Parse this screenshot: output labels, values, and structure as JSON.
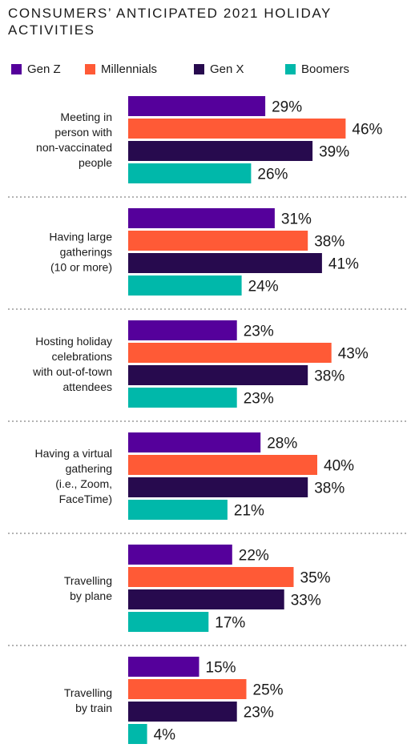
{
  "chart_data": {
    "type": "bar",
    "orientation": "horizontal",
    "title": "CONSUMERS’ ANTICIPATED 2021 HOLIDAY ACTIVITIES",
    "legend_placement": "top",
    "grid": false,
    "xlim": [
      0,
      50
    ],
    "value_suffix": "%",
    "categories": [
      [
        "Meeting in",
        "person with",
        "non-vaccinated",
        "people"
      ],
      [
        "Having large",
        "gatherings",
        "(10 or more)"
      ],
      [
        "Hosting holiday",
        "celebrations",
        "with out-of-town",
        "attendees"
      ],
      [
        "Having a virtual",
        "gathering",
        "(i.e., Zoom,",
        "FaceTime)"
      ],
      [
        "Travelling",
        "by plane"
      ],
      [
        "Travelling",
        "by train"
      ]
    ],
    "series": [
      {
        "name": "Gen Z",
        "color": "#55009b",
        "values": [
          29,
          31,
          23,
          28,
          22,
          15
        ]
      },
      {
        "name": "Millennials",
        "color": "#ff5a36",
        "values": [
          46,
          38,
          43,
          40,
          35,
          25
        ]
      },
      {
        "name": "Gen X",
        "color": "#270a4e",
        "values": [
          39,
          41,
          38,
          38,
          33,
          23
        ]
      },
      {
        "name": "Boomers",
        "color": "#00b8aa",
        "values": [
          26,
          24,
          23,
          21,
          17,
          4
        ]
      }
    ]
  }
}
